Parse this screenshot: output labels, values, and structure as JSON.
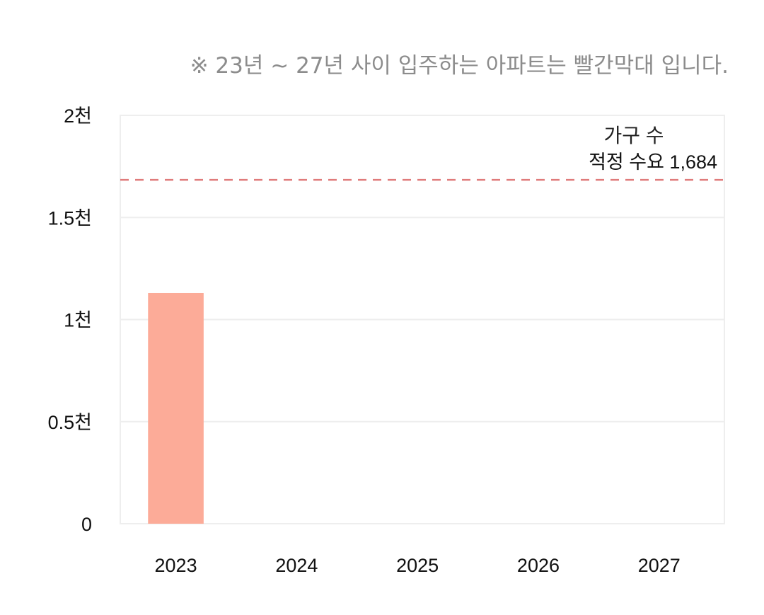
{
  "note": "※ 23년 ~ 27년 사이 입주하는 아파트는 빨간막대 입니다.",
  "colors": {
    "bar": "#fcab98",
    "reference_line": "#e07b7b",
    "grid": "#eeeeee",
    "frame": "#eeeeee",
    "note": "#8c8c8c"
  },
  "chart_data": {
    "type": "bar",
    "title": "",
    "xlabel": "",
    "ylabel": "",
    "categories": [
      "2023",
      "2024",
      "2025",
      "2026",
      "2027"
    ],
    "series": [
      {
        "name": "가구 수",
        "values": [
          1130,
          0,
          0,
          0,
          0
        ]
      }
    ],
    "ylim": [
      0,
      2000
    ],
    "y_ticks": [
      {
        "value": 0,
        "label": "0"
      },
      {
        "value": 500,
        "label": "0.5천"
      },
      {
        "value": 1000,
        "label": "1천"
      },
      {
        "value": 1500,
        "label": "1.5천"
      },
      {
        "value": 2000,
        "label": "2천"
      }
    ],
    "reference_line": {
      "value": 1684,
      "label": "적정 수요 1,684",
      "style": "dashed"
    },
    "grid": true,
    "legend": "top-right"
  }
}
